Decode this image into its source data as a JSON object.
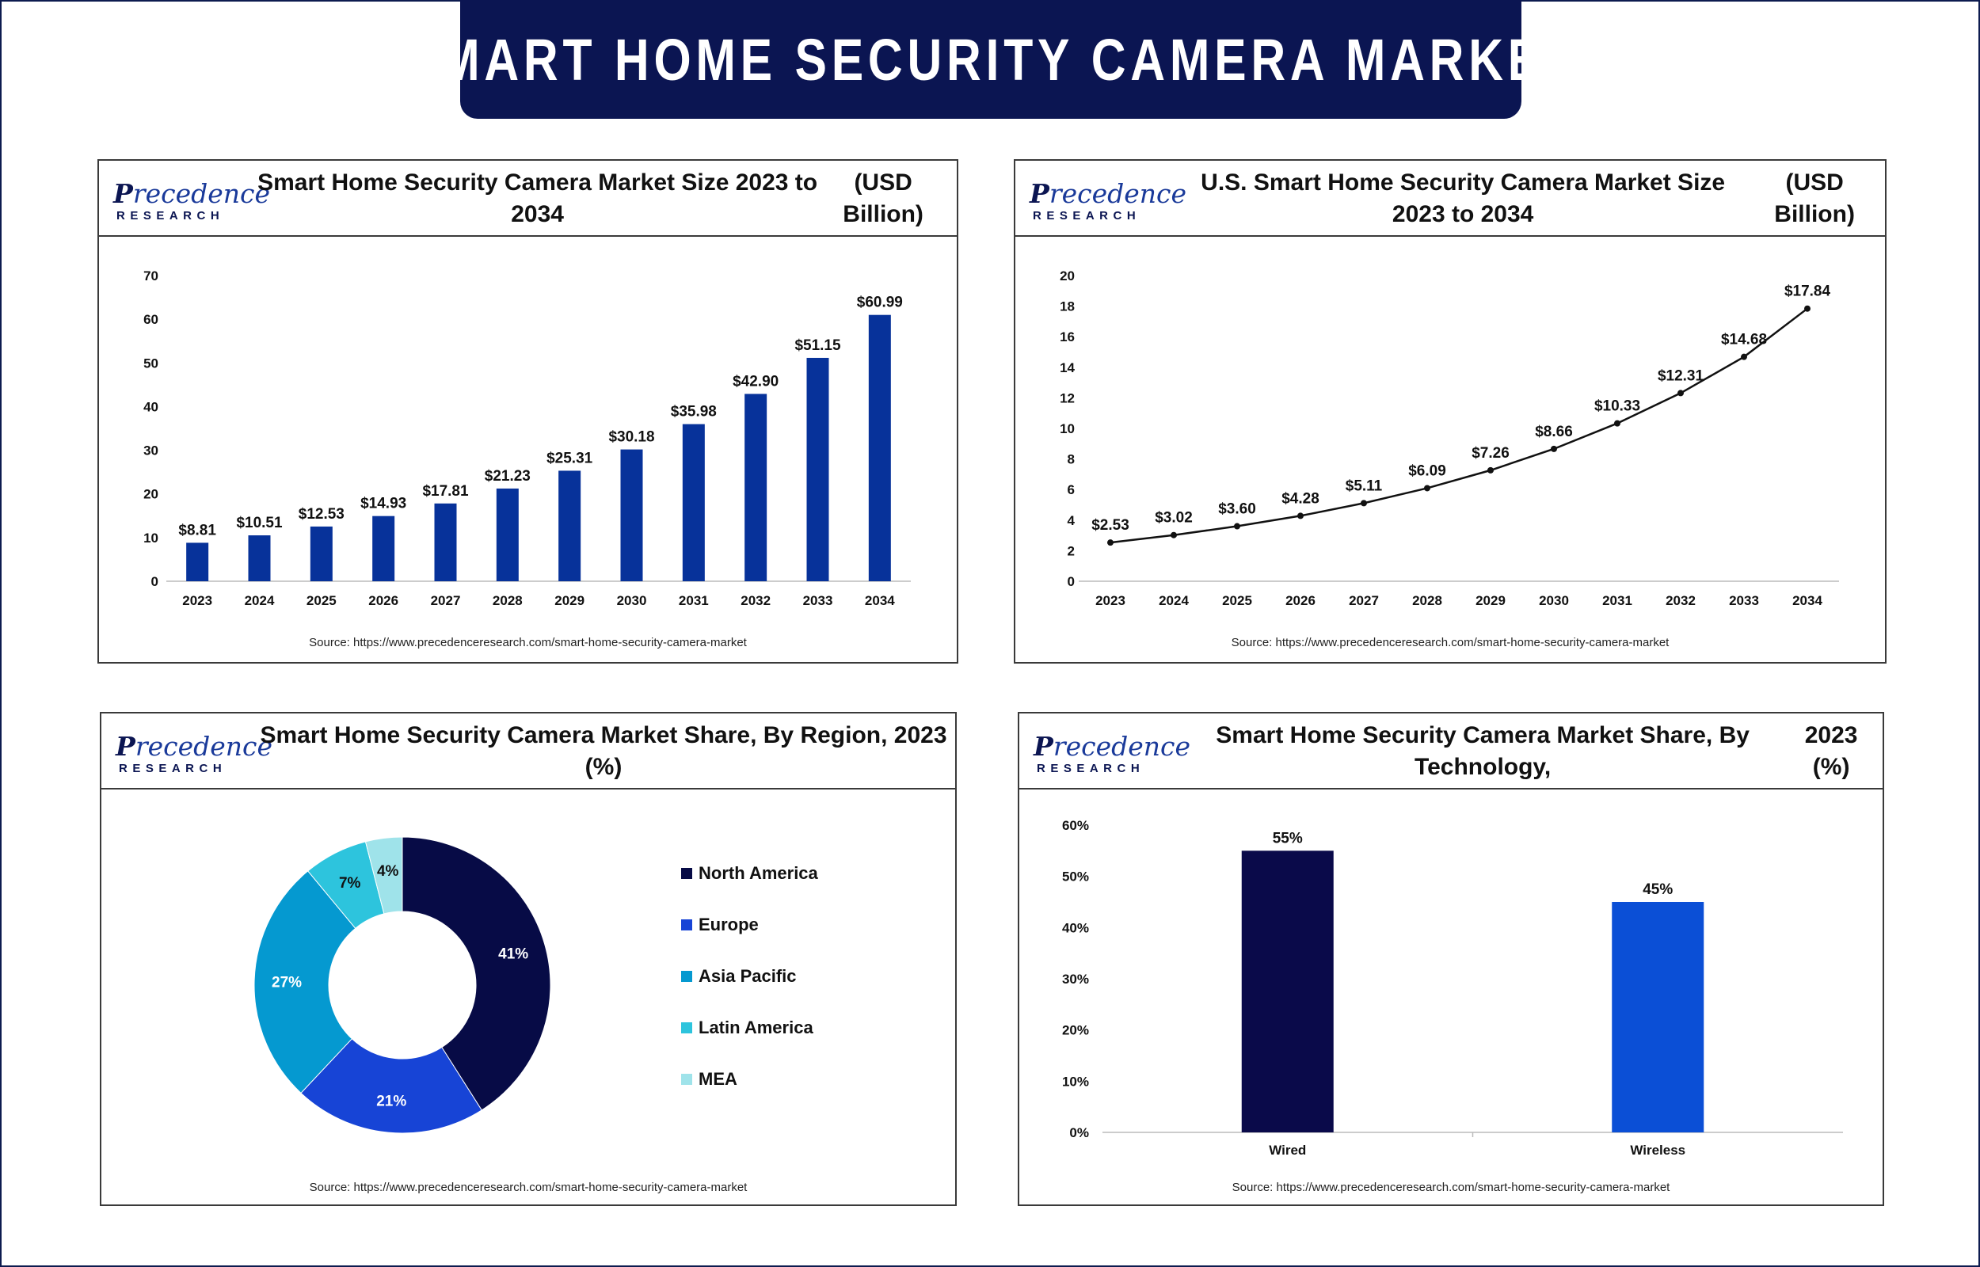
{
  "page": {
    "main_title": "SMART HOME SECURITY CAMERA MARKET",
    "logo_word": "recedence",
    "logo_initial": "P",
    "logo_sub": "RESEARCH",
    "source_text": "Source: https://www.precedenceresearch.com/smart-home-security-camera-market"
  },
  "colors": {
    "banner": "#0b1552",
    "bar_blue": "#07329a",
    "line": "#111111",
    "wired": "#0a0a4a",
    "wireless": "#0b4fd6"
  },
  "chart_data": [
    {
      "type": "bar",
      "title_line1": "Smart Home Security Camera Market Size 2023 to 2034",
      "title_line2": "(USD Billion)",
      "categories": [
        "2023",
        "2024",
        "2025",
        "2026",
        "2027",
        "2028",
        "2029",
        "2030",
        "2031",
        "2032",
        "2033",
        "2034"
      ],
      "values": [
        8.81,
        10.51,
        12.53,
        14.93,
        17.81,
        21.23,
        25.31,
        30.18,
        35.98,
        42.9,
        51.15,
        60.99
      ],
      "labels": [
        "$8.81",
        "$10.51",
        "$12.53",
        "$14.93",
        "$17.81",
        "$21.23",
        "$25.31",
        "$30.18",
        "$35.98",
        "$42.90",
        "$51.15",
        "$60.99"
      ],
      "yticks": [
        "0",
        "10",
        "20",
        "30",
        "40",
        "50",
        "60",
        "70"
      ],
      "ylim": [
        0,
        70
      ]
    },
    {
      "type": "line",
      "title_line1": "U.S. Smart Home Security Camera Market Size 2023 to 2034",
      "title_line2": "(USD Billion)",
      "categories": [
        "2023",
        "2024",
        "2025",
        "2026",
        "2027",
        "2028",
        "2029",
        "2030",
        "2031",
        "2032",
        "2033",
        "2034"
      ],
      "values": [
        2.53,
        3.02,
        3.6,
        4.28,
        5.11,
        6.09,
        7.26,
        8.66,
        10.33,
        12.31,
        14.68,
        17.84
      ],
      "labels": [
        "$2.53",
        "$3.02",
        "$3.60",
        "$4.28",
        "$5.11",
        "$6.09",
        "$7.26",
        "$8.66",
        "$10.33",
        "$12.31",
        "$14.68",
        "$17.84"
      ],
      "yticks": [
        "0",
        "2",
        "4",
        "6",
        "8",
        "10",
        "12",
        "14",
        "16",
        "18",
        "20"
      ],
      "ylim": [
        0,
        20
      ]
    },
    {
      "type": "pie",
      "title": "Smart Home Security Camera Market Share, By Region, 2023 (%)",
      "categories": [
        "North America",
        "Europe",
        "Asia Pacific",
        "Latin America",
        "MEA"
      ],
      "values": [
        41,
        21,
        27,
        7,
        4
      ],
      "labels": [
        "41%",
        "21%",
        "27%",
        "7%",
        "4%"
      ],
      "colors": [
        "#070b46",
        "#1744d6",
        "#0599d0",
        "#2dc4dd",
        "#9fe3ea"
      ]
    },
    {
      "type": "bar",
      "title_line1": "Smart Home Security Camera Market Share, By Technology,",
      "title_line2": "2023 (%)",
      "categories": [
        "Wired",
        "Wireless"
      ],
      "values": [
        55,
        45
      ],
      "labels": [
        "55%",
        "45%"
      ],
      "yticks": [
        "0%",
        "10%",
        "20%",
        "30%",
        "40%",
        "50%",
        "60%"
      ],
      "ylim": [
        0,
        60
      ]
    }
  ]
}
